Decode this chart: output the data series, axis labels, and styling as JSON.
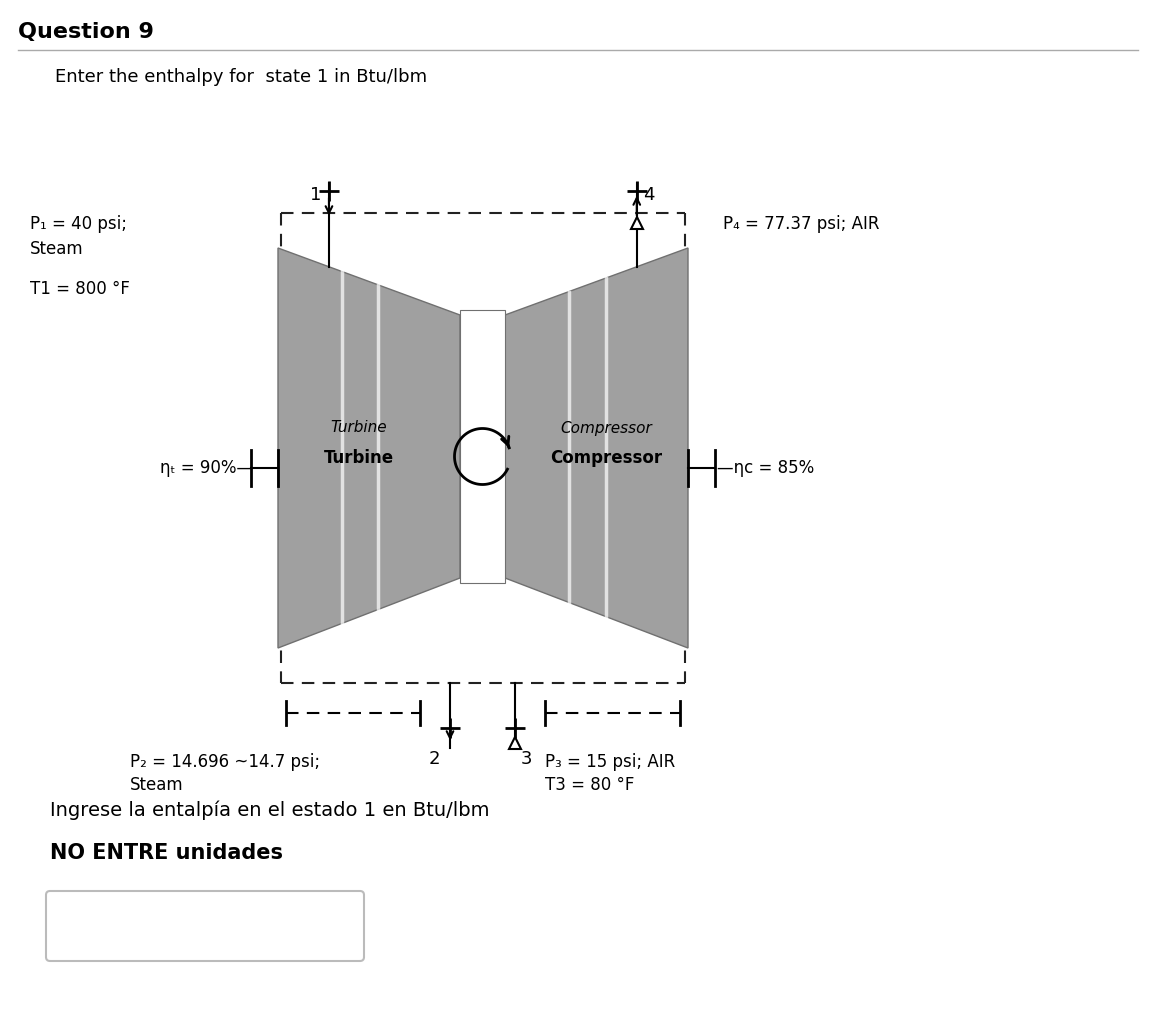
{
  "title": "Question 9",
  "question_text": "Enter the enthalpy for  state 1 in Btu/lbm",
  "spanish_text": "Ingrese la entalpía en el estado 1 en Btu/lbm",
  "no_units_text": "NO ENTRE unidades",
  "p1_line1": "P₁ = 40 psi;",
  "p1_line2": "Steam",
  "p1_line3": "T1 = 800 °F",
  "p4_label": "P₄ = 77.37 psi; AIR",
  "p2_line1": "P₂ = 14.696 ~14.7 psi;",
  "p2_line2": "Steam",
  "p3_line1": "P₃ = 15 psi; AIR",
  "p3_line2": "T3 = 80 °F",
  "turbine_top": "Turbine",
  "turbine_bot": "Turbine",
  "compressor_top": "Compressor",
  "compressor_bot": "Compressor",
  "eta_t": "ηₜ = 90%",
  "eta_c": "ηc = 85%",
  "bg_color": "#ffffff",
  "gray_fill": "#a0a0a0",
  "gray_dark": "#707070",
  "white_line": "#ffffff",
  "dash_color": "#333333",
  "label_color": "#000000"
}
